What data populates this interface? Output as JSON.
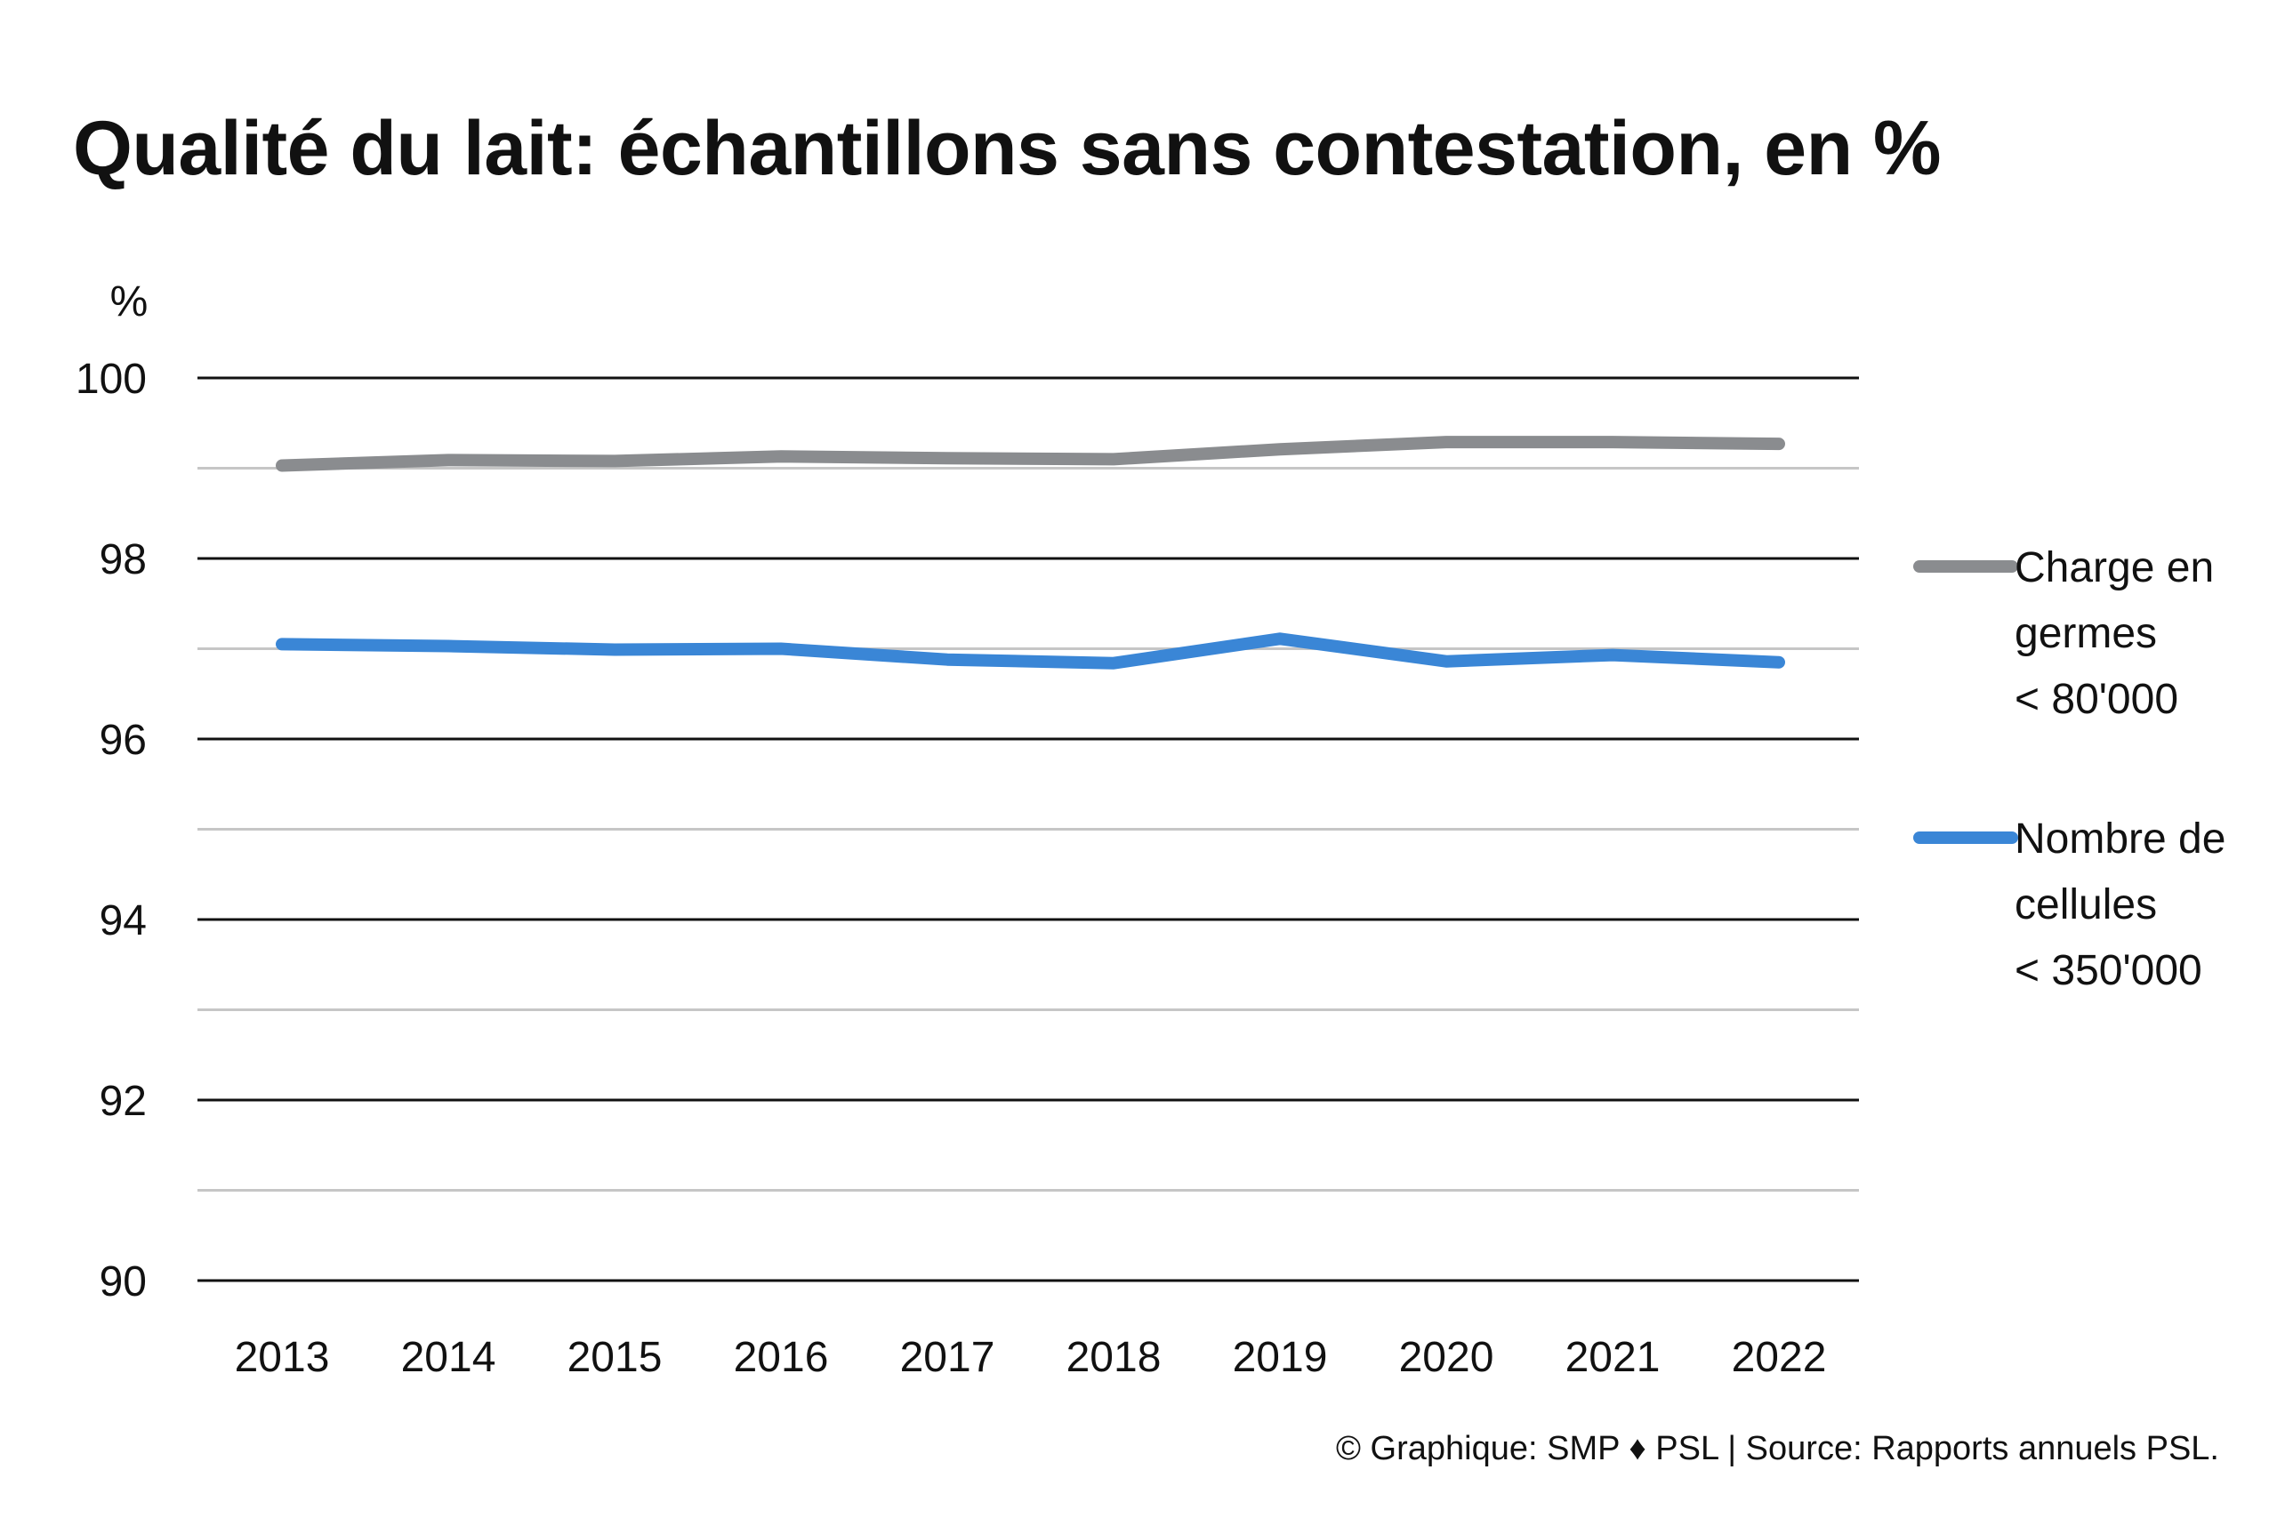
{
  "chart_data": {
    "type": "line",
    "title": "Qualité du lait: échantillons sans contestation, en %",
    "ylabel": "%",
    "xlabel": "",
    "ylim": [
      90,
      100
    ],
    "yticks": [
      "90",
      "92",
      "94",
      "96",
      "98",
      "100"
    ],
    "grid": true,
    "legend_position": "right",
    "categories": [
      "2013",
      "2014",
      "2015",
      "2016",
      "2017",
      "2018",
      "2019",
      "2020",
      "2021",
      "2022"
    ],
    "series": [
      {
        "name": "Charge en germes < 80'000",
        "legend_lines": [
          "Charge en",
          "germes",
          "< 80'000"
        ],
        "color": "#8a8c8f",
        "values": [
          99.03,
          99.09,
          99.08,
          99.13,
          99.11,
          99.1,
          99.21,
          99.29,
          99.29,
          99.27
        ]
      },
      {
        "name": "Nombre de cellules < 350'000",
        "legend_lines": [
          "Nombre de",
          "cellules",
          "< 350'000"
        ],
        "color": "#3a86d6",
        "values": [
          97.05,
          97.03,
          96.99,
          97.0,
          96.88,
          96.84,
          97.11,
          96.86,
          96.93,
          96.85
        ]
      }
    ]
  },
  "source": "© Graphique: SMP ♦ PSL | Source: Rapports annuels PSL."
}
